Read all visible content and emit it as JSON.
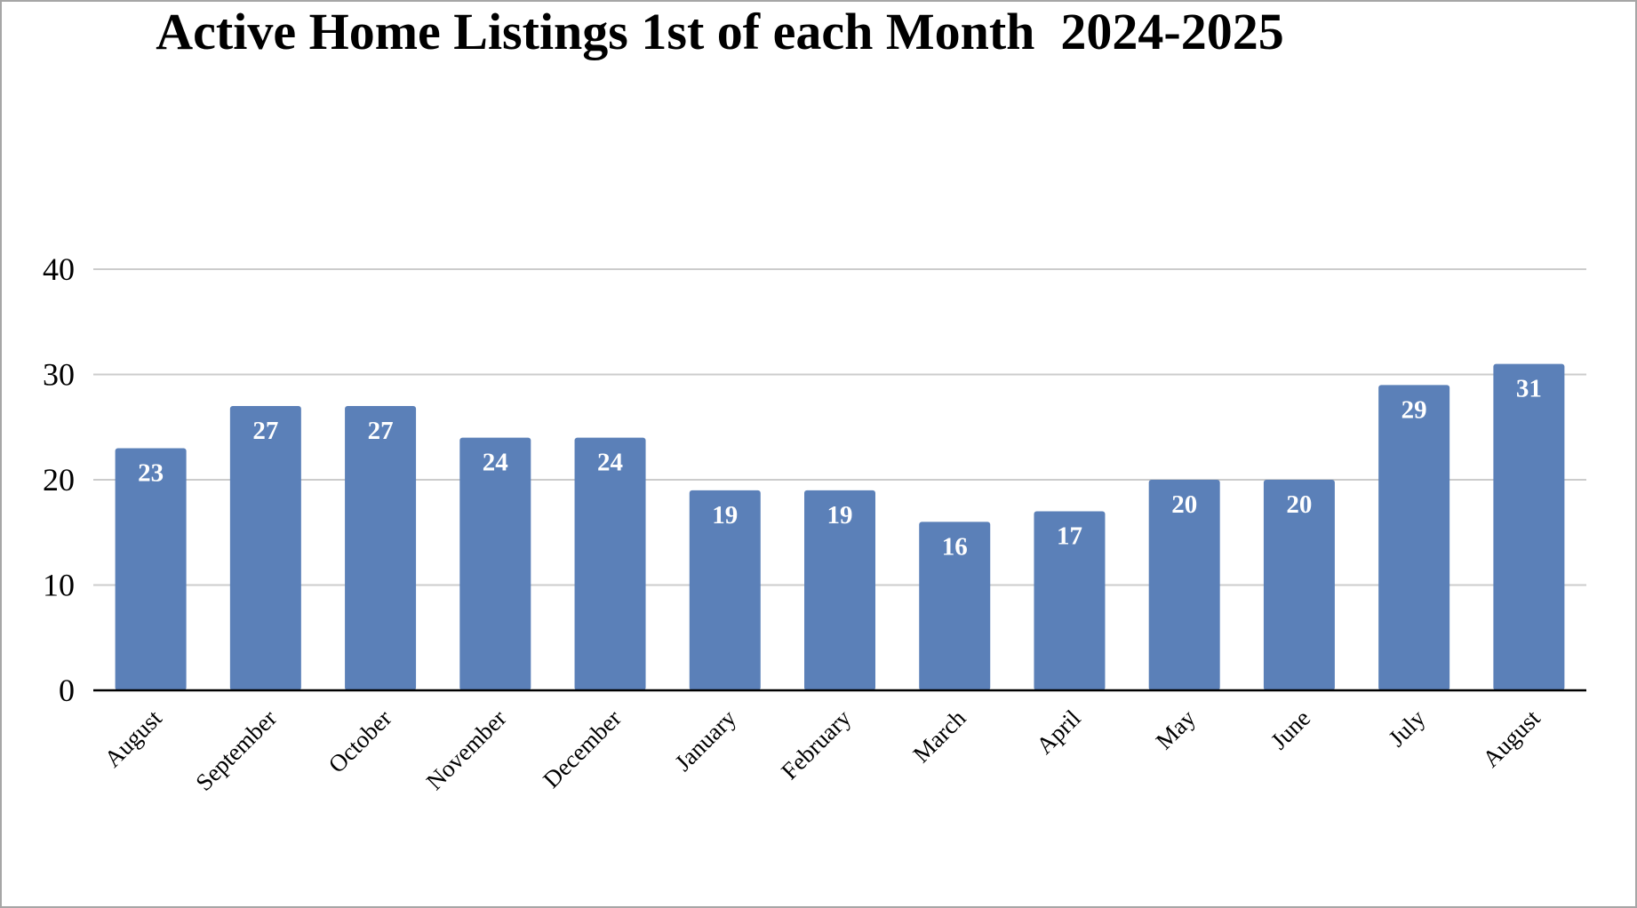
{
  "chart_data": {
    "type": "bar",
    "title": "Active Home Listings 1st of each Month  2024-2025",
    "xlabel": "",
    "ylabel": "",
    "categories": [
      "August",
      "September",
      "October",
      "November",
      "December",
      "January",
      "February",
      "March",
      "April",
      "May",
      "June",
      "July",
      "August"
    ],
    "values": [
      23,
      27,
      27,
      24,
      24,
      19,
      19,
      16,
      17,
      20,
      20,
      29,
      31
    ],
    "ylim": [
      0,
      40
    ],
    "yticks": [
      0,
      10,
      20,
      30,
      40
    ],
    "grid": true,
    "legend": "none",
    "data_labels": true,
    "colors": {
      "bar": "#5b80b8",
      "grid": "#cccccc",
      "axis": "#000000",
      "data_label": "#ffffff"
    }
  }
}
